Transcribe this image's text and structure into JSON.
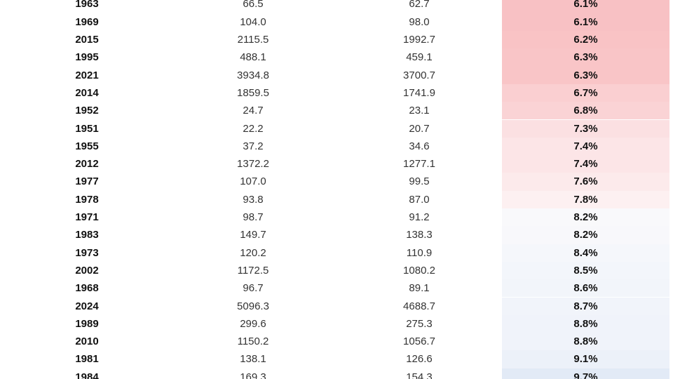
{
  "table": {
    "rows": [
      [
        "1963",
        "66.5",
        "62.7",
        "6.1%"
      ],
      [
        "1969",
        "104.0",
        "98.0",
        "6.1%"
      ],
      [
        "2015",
        "2115.5",
        "1992.7",
        "6.2%"
      ],
      [
        "1995",
        "488.1",
        "459.1",
        "6.3%"
      ],
      [
        "2021",
        "3934.8",
        "3700.7",
        "6.3%"
      ],
      [
        "2014",
        "1859.5",
        "1741.9",
        "6.7%"
      ],
      [
        "1952",
        "24.7",
        "23.1",
        "6.8%"
      ],
      [
        "1951",
        "22.2",
        "20.7",
        "7.3%"
      ],
      [
        "1955",
        "37.2",
        "34.6",
        "7.4%"
      ],
      [
        "2012",
        "1372.2",
        "1277.1",
        "7.4%"
      ],
      [
        "1977",
        "107.0",
        "99.5",
        "7.6%"
      ],
      [
        "1978",
        "93.8",
        "87.0",
        "7.8%"
      ],
      [
        "1971",
        "98.7",
        "91.2",
        "8.2%"
      ],
      [
        "1983",
        "149.7",
        "138.3",
        "8.2%"
      ],
      [
        "1973",
        "120.2",
        "110.9",
        "8.4%"
      ],
      [
        "2002",
        "1172.5",
        "1080.2",
        "8.5%"
      ],
      [
        "1968",
        "96.7",
        "89.1",
        "8.6%"
      ],
      [
        "2024",
        "5096.3",
        "4688.7",
        "8.7%"
      ],
      [
        "1989",
        "299.6",
        "275.3",
        "8.8%"
      ],
      [
        "2010",
        "1150.2",
        "1056.7",
        "8.8%"
      ],
      [
        "1981",
        "138.1",
        "126.6",
        "9.1%"
      ],
      [
        "1984",
        "169.3",
        "154.3",
        "9.7%"
      ]
    ],
    "cell_colors": [
      "#f8c1c4",
      "#f8c1c4",
      "#f9c3c5",
      "#f9c5c7",
      "#f9c5c7",
      "#facfd1",
      "#fad3d5",
      "#fbe0e2",
      "#fce5e7",
      "#fce5e7",
      "#fceaeb",
      "#fdf0f1",
      "#f9f9fb",
      "#f8f8fb",
      "#f5f7fb",
      "#f3f6fb",
      "#f2f5fa",
      "#f1f4fa",
      "#f0f3fa",
      "#f0f3fa",
      "#ecf1f9",
      "#e2eaf6"
    ]
  }
}
